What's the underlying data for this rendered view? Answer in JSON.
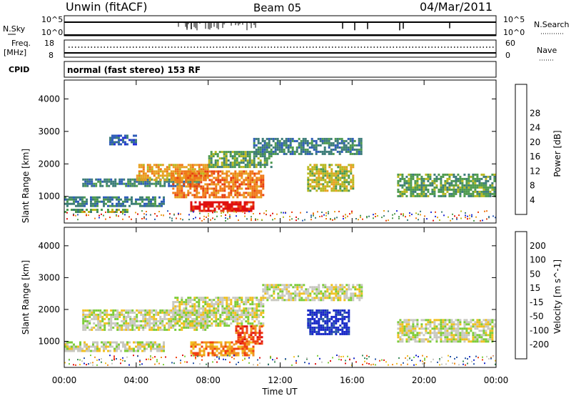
{
  "header": {
    "station": "Unwin (fitACF)",
    "beam": "Beam 05",
    "date": "04/Mar/2011"
  },
  "strip": {
    "nsky_label": "N.Sky",
    "nsky_ticks": [
      "10^5",
      "10^0"
    ],
    "nsearch_label": "N.Search",
    "nsearch_ticks": [
      "10^5",
      "10^0"
    ],
    "freq_label": "Freq.",
    "freq_unit": "[MHz]",
    "freq_ticks": [
      "18",
      "8"
    ],
    "nave_label": "Nave",
    "nave_ticks": [
      "60",
      "0"
    ],
    "cpid_label": "CPID",
    "cpid_text": "normal (fast stereo) 153 RF"
  },
  "chart_data": [
    {
      "type": "heatmap",
      "title": "Power",
      "ylabel": "Slant Range [km]",
      "xlabel": "",
      "x_ticks": [
        "00:00",
        "04:00",
        "08:00",
        "12:00",
        "16:00",
        "20:00",
        "00:00"
      ],
      "y_ticks": [
        "1000",
        "2000",
        "3000",
        "4000"
      ],
      "xlim_hours": [
        0,
        24
      ],
      "ylim_km": [
        180,
        4580
      ],
      "colorbar": {
        "label": "Power [dB]",
        "ticks": [
          "4",
          "8",
          "12",
          "16",
          "20",
          "24",
          "28"
        ],
        "colors": [
          "#2530d8",
          "#2e5cb8",
          "#3c7c78",
          "#4e9a4e",
          "#b8b820",
          "#e8a020",
          "#f07818",
          "#e84010",
          "#e01010"
        ]
      },
      "echo_regions": [
        {
          "t0": 0.0,
          "t1": 5.5,
          "r0": 700,
          "r1": 1000,
          "level": 2
        },
        {
          "t0": 0.0,
          "t1": 3.5,
          "r0": 500,
          "r1": 620,
          "level": 3
        },
        {
          "t0": 1.0,
          "t1": 7.5,
          "r0": 1350,
          "r1": 1550,
          "level": 2
        },
        {
          "t0": 4.0,
          "t1": 8.0,
          "r0": 1500,
          "r1": 2000,
          "level": 5
        },
        {
          "t0": 6.0,
          "t1": 11.0,
          "r0": 1000,
          "r1": 1800,
          "level": 6
        },
        {
          "t0": 7.0,
          "t1": 10.5,
          "r0": 550,
          "r1": 850,
          "level": 8
        },
        {
          "t0": 8.0,
          "t1": 11.5,
          "r0": 1900,
          "r1": 2400,
          "level": 3
        },
        {
          "t0": 10.5,
          "t1": 16.5,
          "r0": 2300,
          "r1": 2800,
          "level": 2
        },
        {
          "t0": 13.5,
          "t1": 16.0,
          "r0": 1200,
          "r1": 2000,
          "level": 4
        },
        {
          "t0": 18.5,
          "t1": 24.0,
          "r0": 1000,
          "r1": 1700,
          "level": 3
        },
        {
          "t0": 2.5,
          "t1": 4.0,
          "r0": 2600,
          "r1": 2900,
          "level": 1
        }
      ]
    },
    {
      "type": "heatmap",
      "title": "Velocity",
      "ylabel": "Slant Range [km]",
      "xlabel": "Time UT",
      "x_ticks": [
        "00:00",
        "04:00",
        "08:00",
        "12:00",
        "16:00",
        "20:00",
        "00:00"
      ],
      "y_ticks": [
        "1000",
        "2000",
        "3000",
        "4000"
      ],
      "xlim_hours": [
        0,
        24
      ],
      "ylim_km": [
        180,
        4580
      ],
      "colorbar": {
        "label": "Velocity [m s^-1]",
        "ticks": [
          "200",
          "100",
          "50",
          "15",
          "-15",
          "-50",
          "-100",
          "-200"
        ],
        "colors": [
          "#1828c8",
          "#2a58a8",
          "#3a8a58",
          "#7ccc38",
          "#c8c8c0",
          "#f0c020",
          "#f09020",
          "#f04010",
          "#e01010"
        ]
      },
      "echo_regions": [
        {
          "t0": 0.0,
          "t1": 5.5,
          "r0": 700,
          "r1": 1000,
          "level": 4
        },
        {
          "t0": 1.0,
          "t1": 8.0,
          "r0": 1350,
          "r1": 2000,
          "level": 4
        },
        {
          "t0": 6.0,
          "t1": 11.0,
          "r0": 1500,
          "r1": 2400,
          "level": 4
        },
        {
          "t0": 7.0,
          "t1": 10.5,
          "r0": 550,
          "r1": 1000,
          "level": 6
        },
        {
          "t0": 9.5,
          "t1": 11.0,
          "r0": 900,
          "r1": 1500,
          "level": 7
        },
        {
          "t0": 11.0,
          "t1": 16.5,
          "r0": 2300,
          "r1": 2800,
          "level": 4
        },
        {
          "t0": 13.5,
          "t1": 15.8,
          "r0": 1200,
          "r1": 2000,
          "level": 0
        },
        {
          "t0": 18.5,
          "t1": 24.0,
          "r0": 1000,
          "r1": 1700,
          "level": 4
        }
      ]
    }
  ]
}
